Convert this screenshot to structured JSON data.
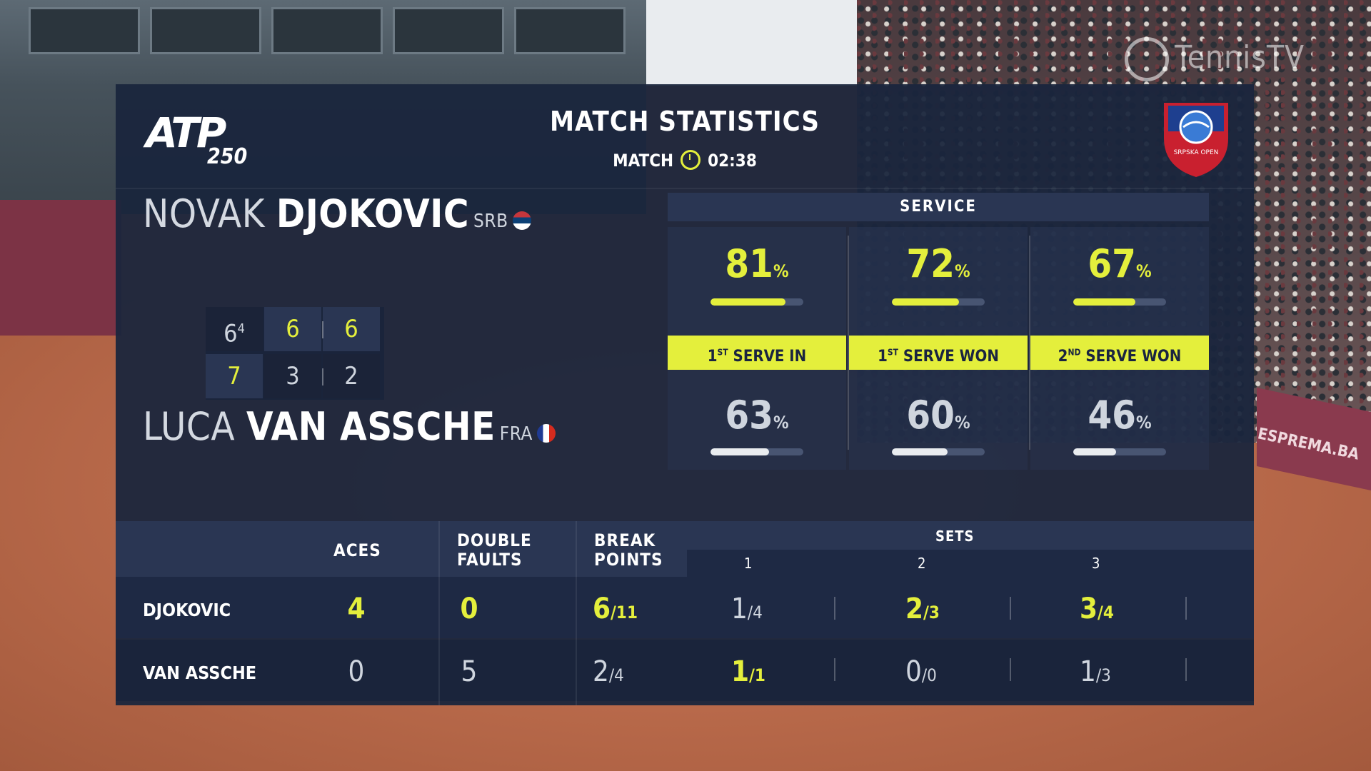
{
  "broadcast": {
    "network": "TennisTV",
    "sponsor_board": "ESPREMA.BA"
  },
  "header": {
    "atp_logo": "ATP",
    "atp_tier": "250",
    "title": "MATCH STATISTICS",
    "match_label": "MATCH",
    "match_time": "02:38",
    "tournament_logo_text": "SRPSKA OPEN"
  },
  "players": [
    {
      "first": "NOVAK",
      "last": "DJOKOVIC",
      "country": "SRB",
      "short": "DJOKOVIC"
    },
    {
      "first": "LUCA",
      "last": "VAN ASSCHE",
      "country": "FRA",
      "short": "VAN ASSCHE"
    }
  ],
  "scores": {
    "p1": [
      {
        "games": "6",
        "tiebreak": "4"
      },
      {
        "games": "6"
      },
      {
        "games": "6"
      }
    ],
    "p2": [
      {
        "games": "7"
      },
      {
        "games": "3"
      },
      {
        "games": "2"
      }
    ]
  },
  "service": {
    "heading": "SERVICE",
    "columns": [
      {
        "label": "1ST SERVE IN",
        "p1": "81",
        "p2": "63"
      },
      {
        "label": "1ST SERVE WON",
        "p1": "72",
        "p2": "60"
      },
      {
        "label": "2ND SERVE WON",
        "p1": "67",
        "p2": "46"
      }
    ],
    "pct_sign": "%"
  },
  "table": {
    "headers": {
      "aces": "ACES",
      "double_faults_1": "DOUBLE",
      "double_faults_2": "FAULTS",
      "break_points_1": "BREAK",
      "break_points_2": "POINTS",
      "sets": "SETS",
      "set1": "1",
      "set2": "2",
      "set3": "3"
    },
    "rows": [
      {
        "name": "DJOKOVIC",
        "aces": "4",
        "df": "0",
        "bp_won": "6",
        "bp_total": "/11",
        "s1_won": "1",
        "s1_total": "/4",
        "s2_won": "2",
        "s2_total": "/3",
        "s3_won": "3",
        "s3_total": "/4"
      },
      {
        "name": "VAN ASSCHE",
        "aces": "0",
        "df": "5",
        "bp_won": "2",
        "bp_total": "/4",
        "s1_won": "1",
        "s1_total": "/1",
        "s2_won": "0",
        "s2_total": "/0",
        "s3_won": "1",
        "s3_total": "/3"
      }
    ]
  },
  "colors": {
    "accent": "#e4ef3c",
    "panel": "#1a253d",
    "bar_track": "#485572",
    "bar_p2": "#e9ecef"
  }
}
